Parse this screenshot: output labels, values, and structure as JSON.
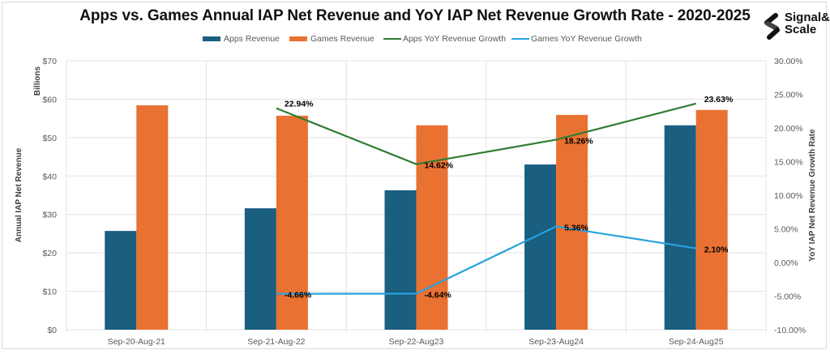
{
  "chart_data": {
    "type": "bar",
    "title": "Apps vs. Games Annual IAP Net Revenue and YoY IAP Net Revenue Growth Rate - 2020-2025",
    "categories": [
      "Sep-20-Aug-21",
      "Sep-21-Aug-22",
      "Sep-22-Aug23",
      "Sep-23-Aug24",
      "Sep-24-Aug25"
    ],
    "bar_series": [
      {
        "name": "Apps Revenue",
        "color": "#1a5e80",
        "values": [
          25.7,
          31.6,
          36.3,
          43.0,
          53.2
        ]
      },
      {
        "name": "Games Revenue",
        "color": "#e97132",
        "values": [
          58.4,
          55.7,
          53.2,
          55.9,
          57.2
        ]
      }
    ],
    "line_series": [
      {
        "name": "Apps YoY Revenue Growth",
        "color": "#2e7d32",
        "values": [
          null,
          22.94,
          14.62,
          18.26,
          23.63
        ],
        "labels": [
          null,
          "22.94%",
          "14.62%",
          "18.26%",
          "23.63%"
        ]
      },
      {
        "name": "Games YoY Revenue Growth",
        "color": "#27a3dc",
        "values": [
          null,
          -4.66,
          -4.64,
          5.36,
          2.1
        ],
        "labels": [
          null,
          "-4.66%",
          "-4.64%",
          "5.36%",
          "2.10%"
        ]
      }
    ],
    "y_left": {
      "label": "Annual IAP Net Revenue",
      "units_label": "Billions",
      "ylim": [
        0,
        70
      ],
      "ticks": [
        0,
        10,
        20,
        30,
        40,
        50,
        60,
        70
      ],
      "tick_labels": [
        "$0",
        "$10",
        "$20",
        "$30",
        "$40",
        "$50",
        "$60",
        "$70"
      ]
    },
    "y_right": {
      "label": "YoY IAP Net Revenue Growth Rate",
      "ylim": [
        -10,
        30
      ],
      "ticks": [
        -10,
        -5,
        0,
        5,
        10,
        15,
        20,
        25,
        30
      ],
      "tick_labels": [
        "-10.00%",
        "-5.00%",
        "0.00%",
        "5.00%",
        "10.00%",
        "15.00%",
        "20.00%",
        "25.00%",
        "30.00%"
      ]
    },
    "grid": true,
    "legend_position": "top"
  },
  "logo": {
    "line1": "Signal&",
    "line2": "Scale"
  }
}
